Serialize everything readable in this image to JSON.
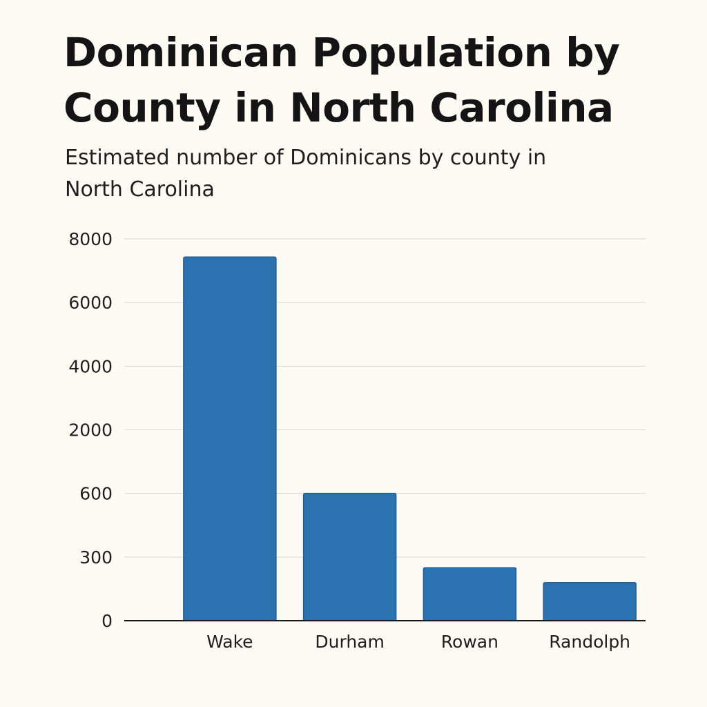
{
  "chart_data": {
    "type": "bar",
    "title": "Dominican Population by County in North Carolina",
    "subtitle": "Estimated number of Dominicans by county in North Carolina",
    "xlabel": "",
    "ylabel": "",
    "categories": [
      "Wake",
      "Durham",
      "Rowan",
      "Randolph"
    ],
    "values": [
      7430,
      600,
      250,
      180
    ],
    "y_ticks": [
      "0",
      "300",
      "600",
      "2000",
      "4000",
      "6000",
      "8000"
    ],
    "y_scale": "non-uniform (tick labels as printed)",
    "grid": true,
    "legend": "none",
    "bar_color": "#2a72b0"
  }
}
